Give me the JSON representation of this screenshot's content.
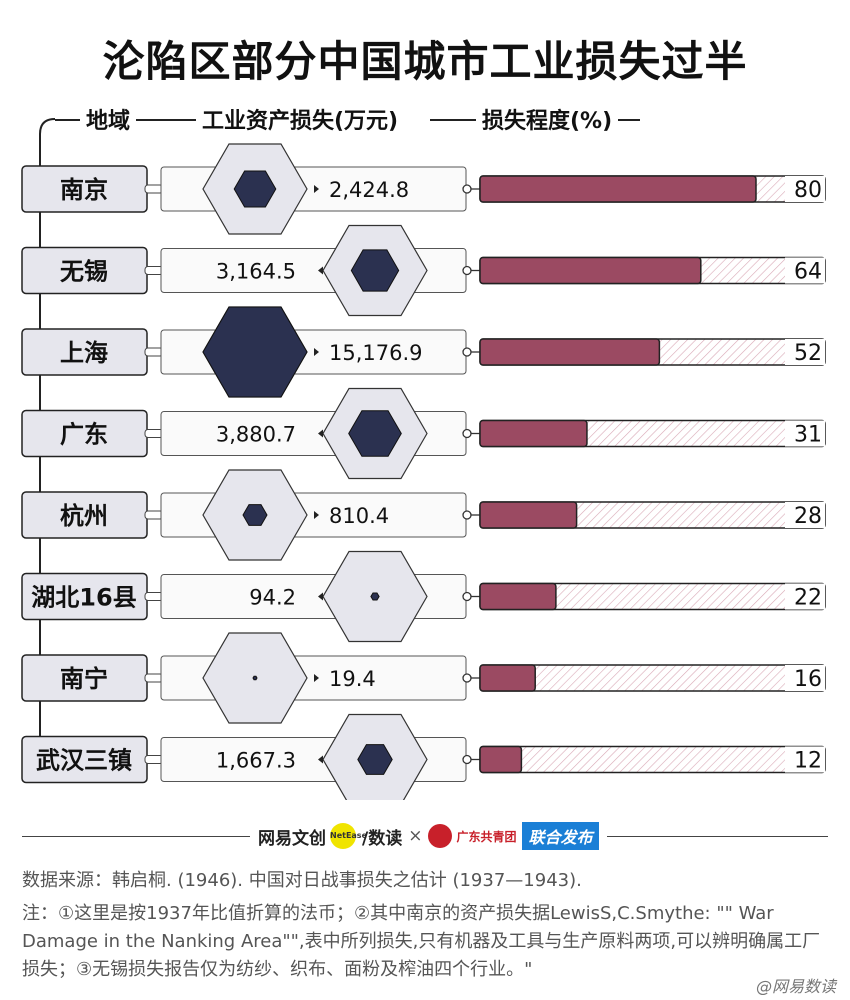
{
  "chart_data": {
    "type": "table",
    "title": "沦陷区部分中国城市工业损失过半",
    "columns": [
      "地域",
      "工业资产损失(万元)",
      "损失程度(%)"
    ],
    "rows": [
      {
        "region": "南京",
        "asset_loss": 2424.8,
        "asset_loss_label": "2,424.8",
        "loss_pct": 80
      },
      {
        "region": "无锡",
        "asset_loss": 3164.5,
        "asset_loss_label": "3,164.5",
        "loss_pct": 64
      },
      {
        "region": "上海",
        "asset_loss": 15176.9,
        "asset_loss_label": "15,176.9",
        "loss_pct": 52
      },
      {
        "region": "广东",
        "asset_loss": 3880.7,
        "asset_loss_label": "3,880.7",
        "loss_pct": 31
      },
      {
        "region": "杭州",
        "asset_loss": 810.4,
        "asset_loss_label": "810.4",
        "loss_pct": 28
      },
      {
        "region": "湖北16县",
        "asset_loss": 94.2,
        "asset_loss_label": "94.2",
        "loss_pct": 22
      },
      {
        "region": "南宁",
        "asset_loss": 19.4,
        "asset_loss_label": "19.4",
        "loss_pct": 16
      },
      {
        "region": "武汉三镇",
        "asset_loss": 1667.3,
        "asset_loss_label": "1,667.3",
        "loss_pct": 12
      }
    ],
    "pct_range": [
      0,
      100
    ],
    "colors": {
      "bar": "#9b4a62",
      "hexagon": "#2b3150",
      "panel": "#e6e6ed",
      "hatch": "#d9a9b6"
    }
  },
  "footer": {
    "brand1": "网易文创",
    "brand_badge": "NetEase",
    "brand2": "/数读",
    "cross": "×",
    "brand3": "广东共青团",
    "brand4": "联合发布",
    "source": "数据来源：韩启桐. (1946). 中国对日战事损失之估计 (1937—1943).",
    "note": "注：①这里是按1937年比值折算的法币；②其中南京的资产损失据LewisS,C.Smythe: \"\" War Damage in the Nanking Area\"\",表中所列损失,只有机器及工具与生产原料两项,可以辨明确属工厂损失；③无锡损失报告仅为纺纱、织布、面粉及榨油四个行业。\"",
    "watermark": "@网易数读"
  }
}
